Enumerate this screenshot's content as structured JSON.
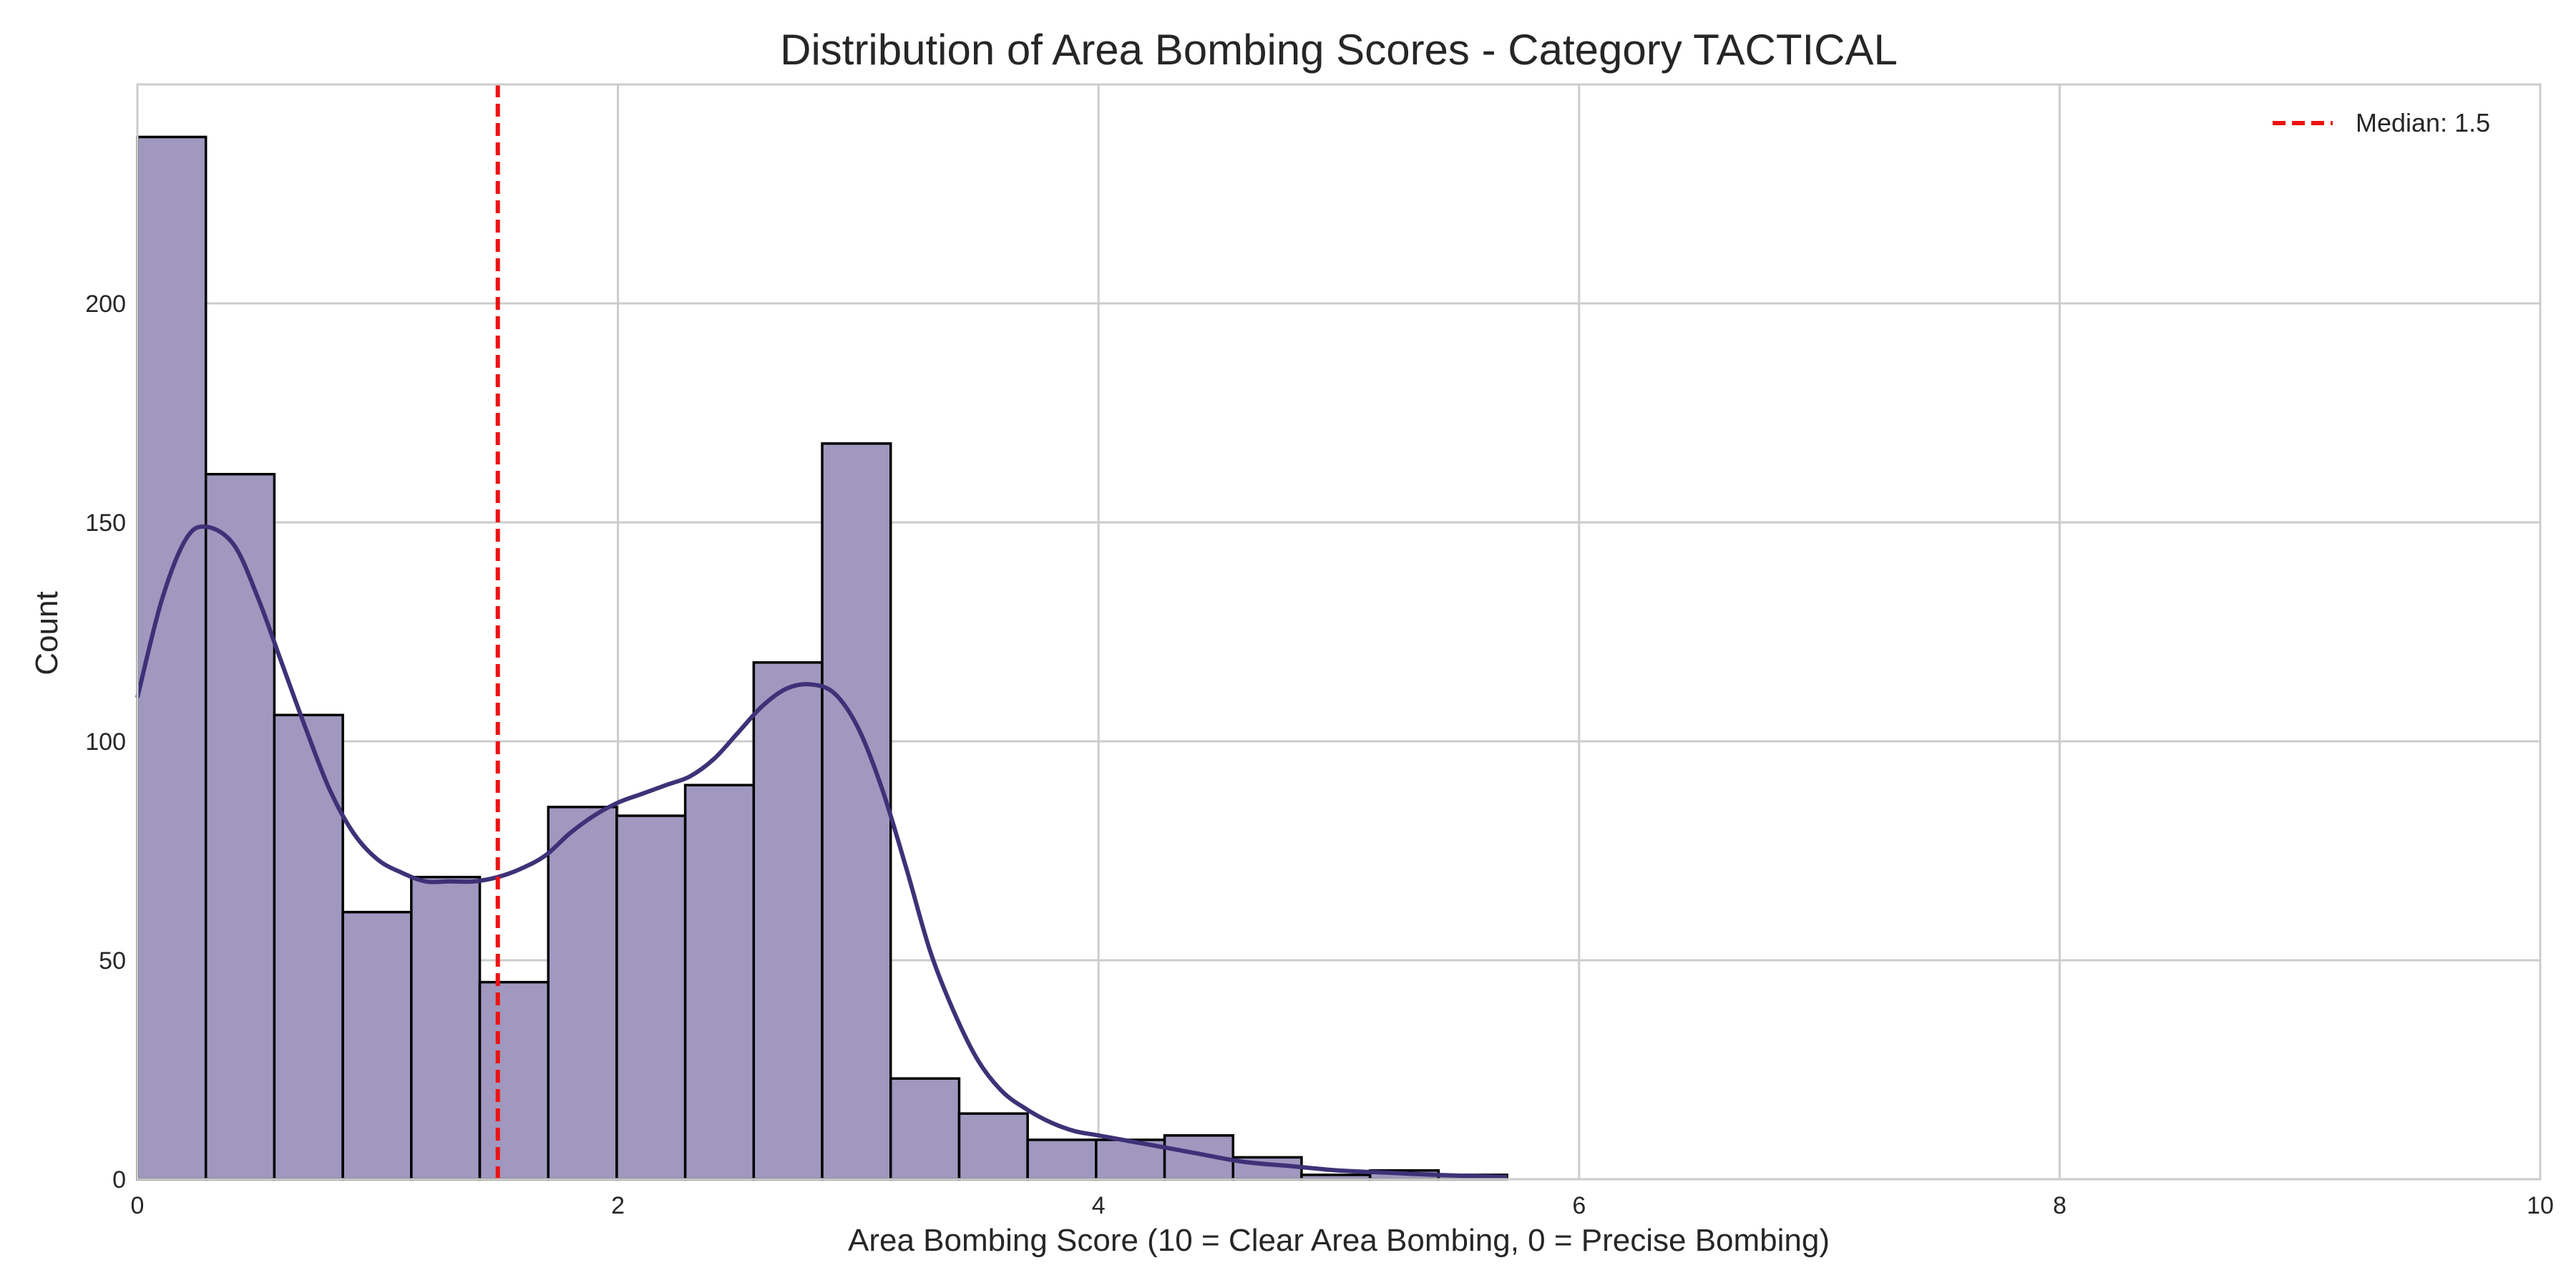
{
  "chart_data": {
    "type": "bar",
    "subtype": "histogram-with-kde",
    "title": "Distribution of Area Bombing Scores - Category TACTICAL",
    "xlabel": "Area Bombing Score (10 = Clear Area Bombing, 0 = Precise Bombing)",
    "ylabel": "Count",
    "xlim": [
      0,
      10
    ],
    "ylim": [
      0,
      250
    ],
    "xticks": [
      0,
      2,
      4,
      6,
      8,
      10
    ],
    "yticks": [
      0,
      50,
      100,
      150,
      200
    ],
    "grid": true,
    "legend_position": "top-right",
    "bar_color": "#a098bf",
    "bar_edge_color": "#000000",
    "kde_color": "#3f3177",
    "median_color": "#ee1111",
    "bins": [
      {
        "x0": 0.0,
        "x1": 0.285,
        "count": 238
      },
      {
        "x0": 0.285,
        "x1": 0.57,
        "count": 161
      },
      {
        "x0": 0.57,
        "x1": 0.855,
        "count": 106
      },
      {
        "x0": 0.855,
        "x1": 1.14,
        "count": 61
      },
      {
        "x0": 1.14,
        "x1": 1.425,
        "count": 69
      },
      {
        "x0": 1.425,
        "x1": 1.71,
        "count": 45
      },
      {
        "x0": 1.71,
        "x1": 1.995,
        "count": 85
      },
      {
        "x0": 1.995,
        "x1": 2.28,
        "count": 83
      },
      {
        "x0": 2.28,
        "x1": 2.565,
        "count": 90
      },
      {
        "x0": 2.565,
        "x1": 2.85,
        "count": 118
      },
      {
        "x0": 2.85,
        "x1": 3.135,
        "count": 168
      },
      {
        "x0": 3.135,
        "x1": 3.42,
        "count": 23
      },
      {
        "x0": 3.42,
        "x1": 3.705,
        "count": 15
      },
      {
        "x0": 3.705,
        "x1": 3.99,
        "count": 9
      },
      {
        "x0": 3.99,
        "x1": 4.275,
        "count": 9
      },
      {
        "x0": 4.275,
        "x1": 4.56,
        "count": 10
      },
      {
        "x0": 4.56,
        "x1": 4.845,
        "count": 5
      },
      {
        "x0": 4.845,
        "x1": 5.13,
        "count": 1
      },
      {
        "x0": 5.13,
        "x1": 5.415,
        "count": 2
      },
      {
        "x0": 5.415,
        "x1": 5.7,
        "count": 1
      }
    ],
    "kde": {
      "x": [
        0.0,
        0.1,
        0.2,
        0.285,
        0.4,
        0.5,
        0.6,
        0.7,
        0.8,
        0.9,
        1.0,
        1.1,
        1.2,
        1.3,
        1.4,
        1.5,
        1.6,
        1.7,
        1.8,
        1.9,
        2.0,
        2.1,
        2.2,
        2.3,
        2.4,
        2.5,
        2.6,
        2.7,
        2.8,
        2.9,
        3.0,
        3.1,
        3.2,
        3.3,
        3.4,
        3.5,
        3.6,
        3.7,
        3.8,
        3.9,
        4.0,
        4.2,
        4.4,
        4.6,
        4.8,
        5.0,
        5.2,
        5.4,
        5.7
      ],
      "y": [
        110,
        132,
        146,
        149,
        145,
        133,
        118,
        103,
        89,
        79,
        73,
        70,
        68,
        68,
        68,
        69,
        71,
        74,
        79,
        83,
        86,
        88,
        90,
        92,
        96,
        102,
        108,
        112,
        113,
        111,
        103,
        89,
        71,
        52,
        38,
        27,
        20,
        16,
        13,
        11,
        10,
        8,
        6,
        4,
        3,
        2,
        1.5,
        1,
        0.5
      ]
    },
    "median": {
      "value": 1.5,
      "label": "Median: 1.5"
    }
  }
}
